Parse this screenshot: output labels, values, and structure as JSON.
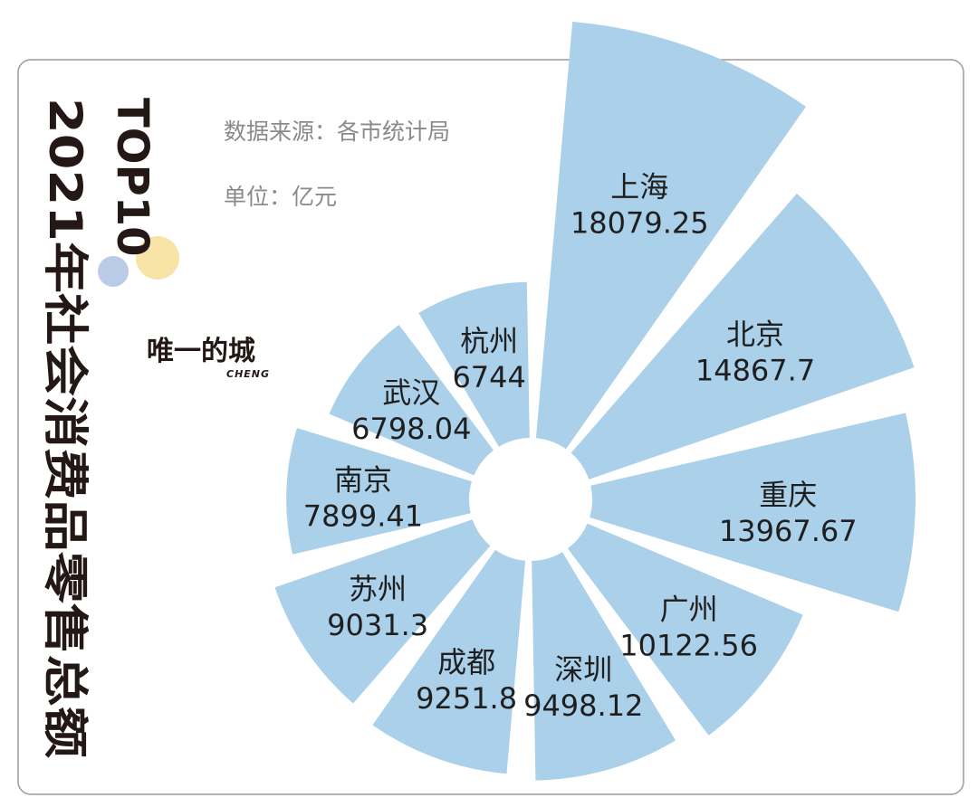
{
  "title": {
    "line1": "TOP10",
    "line2": "2021年社会消费品零售总额"
  },
  "source": "数据来源：各市统计局",
  "unit": "单位：亿元",
  "brand": {
    "name": "唯一的城",
    "sub": "CHENG"
  },
  "colors": {
    "slice": "#aad0ea",
    "frame": "#9a9a9a",
    "title": "#231815",
    "deco_yellow": "#f8e4a6",
    "deco_blue": "#b9cbe7"
  },
  "chart_data": {
    "type": "pie",
    "variant": "nightingale-rose",
    "unit": "亿元",
    "categories": [
      "上海",
      "北京",
      "重庆",
      "广州",
      "深圳",
      "成都",
      "苏州",
      "南京",
      "武汉",
      "杭州"
    ],
    "values": [
      18079.25,
      14867.7,
      13967.67,
      10122.56,
      9498.12,
      9251.8,
      9031.3,
      7899.41,
      6798.04,
      6744
    ],
    "value_labels": [
      "18079.25",
      "14867.7",
      "13967.67",
      "10122.56",
      "9498.12",
      "9251.8",
      "9031.3",
      "7899.41",
      "6798.04",
      "6744"
    ]
  }
}
